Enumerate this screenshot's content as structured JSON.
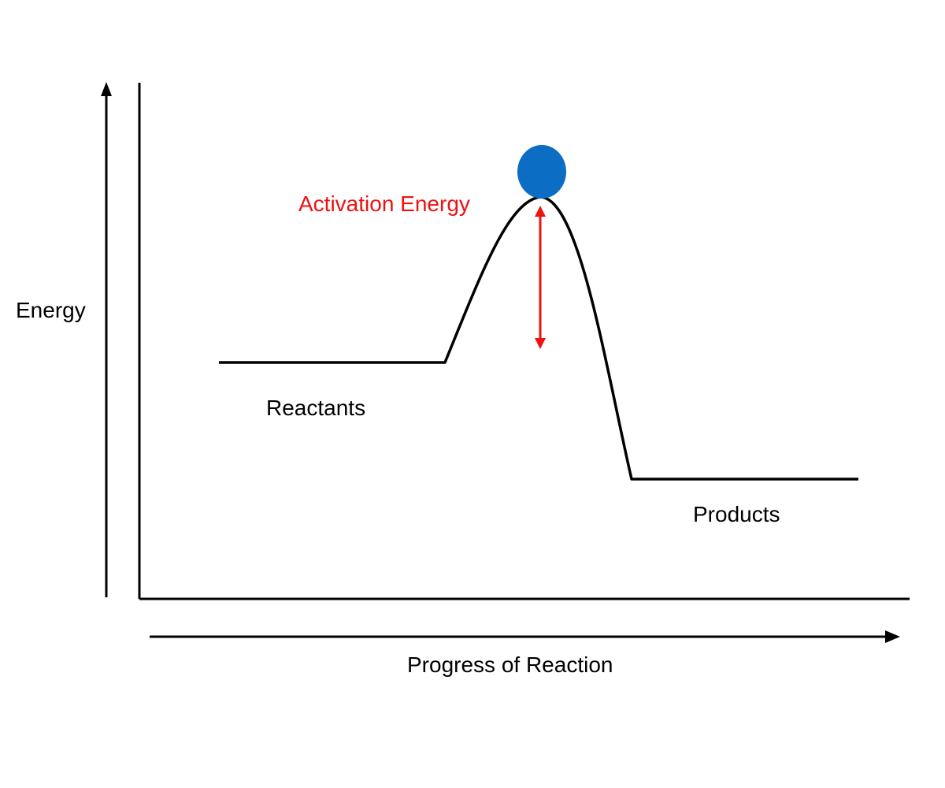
{
  "labels": {
    "y_axis": "Energy",
    "x_axis": "Progress of Reaction",
    "reactants": "Reactants",
    "products": "Products",
    "activation_energy": "Activation Energy"
  },
  "colors": {
    "curve": "#000000",
    "axes": "#000000",
    "activation_arrow": "#ee1111",
    "activation_text": "#ee1111",
    "ball": "#0b6dc3",
    "text": "#000000"
  }
}
